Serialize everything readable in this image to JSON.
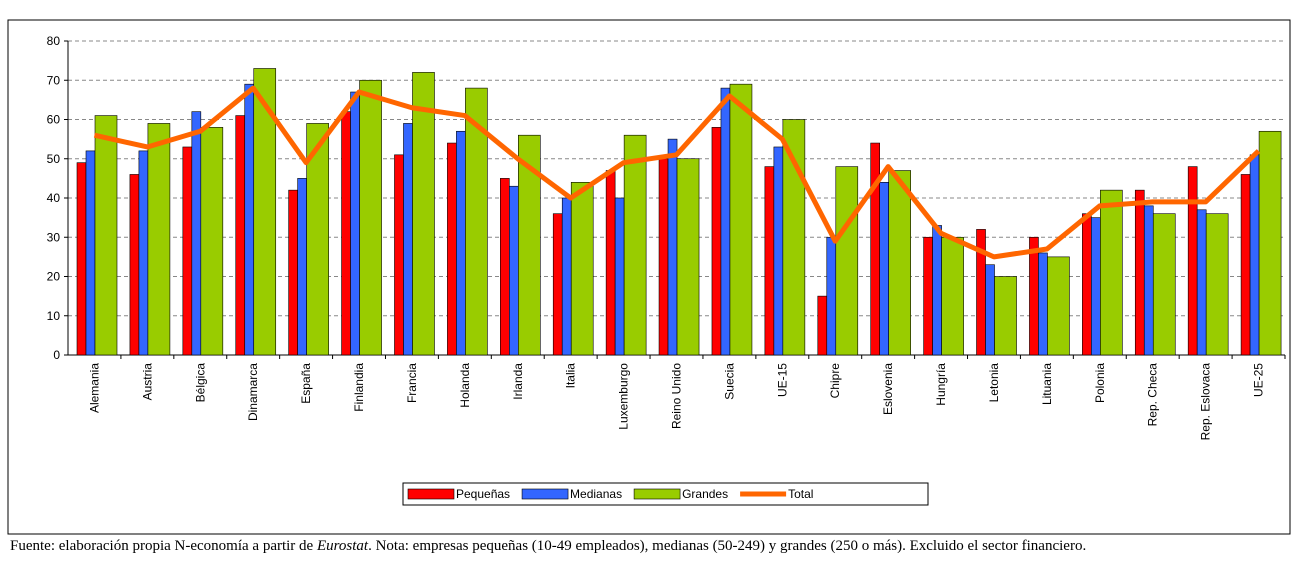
{
  "chart_data": {
    "type": "bar",
    "categories": [
      "Alemania",
      "Austria",
      "Bélgica",
      "Dinamarca",
      "España",
      "Finlandia",
      "Francia",
      "Holanda",
      "Irlanda",
      "Italia",
      "Luxemburgo",
      "Reino Unido",
      "Suecia",
      "UE-15",
      "Chipre",
      "Eslovenia",
      "Hungría",
      "Letonia",
      "Lituania",
      "Polonia",
      "Rep. Checa",
      "Rep. Eslovaca",
      "UE-25"
    ],
    "series": [
      {
        "name": "Pequeñas",
        "color": "#ff0000",
        "values": [
          49,
          46,
          53,
          61,
          42,
          62,
          51,
          54,
          45,
          36,
          47,
          50,
          58,
          48,
          15,
          54,
          30,
          32,
          30,
          36,
          42,
          48,
          46
        ]
      },
      {
        "name": "Medianas",
        "color": "#3366ff",
        "values": [
          52,
          52,
          62,
          69,
          45,
          67,
          59,
          57,
          43,
          40,
          40,
          55,
          68,
          53,
          30,
          44,
          33,
          23,
          26,
          35,
          38,
          37,
          51
        ]
      },
      {
        "name": "Grandes",
        "color": "#99cc00",
        "values": [
          61,
          59,
          58,
          73,
          59,
          70,
          72,
          68,
          56,
          44,
          56,
          50,
          69,
          60,
          48,
          47,
          30,
          20,
          25,
          42,
          36,
          36,
          57
        ]
      },
      {
        "name": "Total",
        "type": "line",
        "color": "#ff6600",
        "values": [
          56,
          53,
          57,
          68,
          49,
          67,
          63,
          61,
          50,
          40,
          49,
          51,
          66,
          55,
          29,
          48,
          31,
          25,
          27,
          38,
          39,
          39,
          52
        ]
      }
    ],
    "ylim": [
      0,
      80
    ],
    "yticks": [
      0,
      10,
      20,
      30,
      40,
      50,
      60,
      70,
      80
    ],
    "grid": true,
    "source_prefix": "Fuente: elaboración propia N-economía a partir de ",
    "source_italic": "Eurostat",
    "note": ". Nota: empresas pequeñas (10-49 empleados), medianas (50-249) y grandes (250 o más). Excluido el sector financiero."
  }
}
